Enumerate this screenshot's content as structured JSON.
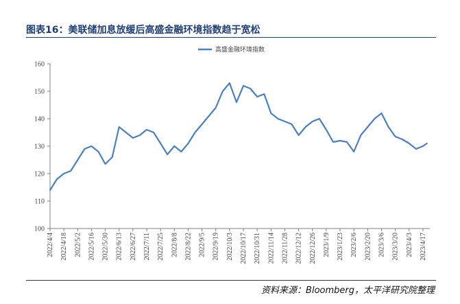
{
  "header": {
    "figure_title": "图表16：美联储加息放缓后高盛金融环境指数趋于宽松"
  },
  "footer": {
    "source": "资料来源：Bloomberg，太平洋研究院整理"
  },
  "colors": {
    "line": "#4a7fc1",
    "title": "#1f3f75"
  },
  "chart_data": {
    "type": "line",
    "title": "",
    "xlabel": "",
    "ylabel": "",
    "ylim": [
      100,
      160
    ],
    "yticks": [
      100,
      110,
      120,
      130,
      140,
      150,
      160
    ],
    "grid": false,
    "legend_position": "top-center",
    "x_tick_labels": [
      "2022/4/4",
      "2022/4/18",
      "2022/5/2",
      "2022/5/16",
      "2022/5/30",
      "2022/6/13",
      "2022/6/27",
      "2022/7/11",
      "2022/7/25",
      "2022/8/8",
      "2022/8/22",
      "2022/9/5",
      "2022/9/19",
      "2022/10/3",
      "2022/10/17",
      "2022/10/31",
      "2022/11/14",
      "2022/11/28",
      "2022/12/12",
      "2022/12/26",
      "2023/1/9",
      "2023/1/23",
      "2023/2/6",
      "2023/2/20",
      "2023/3/6",
      "2023/3/20",
      "2023/4/3",
      "2023/4/17"
    ],
    "series": [
      {
        "name": "高盛金融环境指数",
        "x": [
          "2022/4/4",
          "2022/4/11",
          "2022/4/18",
          "2022/4/25",
          "2022/5/2",
          "2022/5/9",
          "2022/5/16",
          "2022/5/23",
          "2022/5/30",
          "2022/6/6",
          "2022/6/13",
          "2022/6/20",
          "2022/6/27",
          "2022/7/4",
          "2022/7/11",
          "2022/7/18",
          "2022/7/25",
          "2022/8/1",
          "2022/8/8",
          "2022/8/15",
          "2022/8/22",
          "2022/8/29",
          "2022/9/5",
          "2022/9/12",
          "2022/9/19",
          "2022/9/26",
          "2022/10/3",
          "2022/10/10",
          "2022/10/17",
          "2022/10/24",
          "2022/10/31",
          "2022/11/7",
          "2022/11/14",
          "2022/11/21",
          "2022/11/28",
          "2022/12/5",
          "2022/12/12",
          "2022/12/19",
          "2022/12/26",
          "2023/1/2",
          "2023/1/9",
          "2023/1/16",
          "2023/1/23",
          "2023/1/30",
          "2023/2/6",
          "2023/2/13",
          "2023/2/20",
          "2023/2/27",
          "2023/3/6",
          "2023/3/13",
          "2023/3/20",
          "2023/3/27",
          "2023/4/3",
          "2023/4/10",
          "2023/4/17",
          "2023/4/21"
        ],
        "values": [
          114,
          118,
          120,
          121,
          125,
          129,
          130,
          128,
          123.5,
          126,
          137,
          135,
          133,
          134,
          136,
          135,
          131,
          127,
          130,
          128,
          131,
          135,
          138,
          141,
          144,
          150,
          153,
          146,
          152,
          151,
          148,
          149,
          142,
          140,
          139,
          138,
          134,
          137,
          139,
          140,
          136,
          131.5,
          132,
          131.5,
          128,
          134,
          137,
          140,
          142,
          137,
          133.5,
          132.5,
          131,
          129,
          130,
          131
        ]
      }
    ]
  }
}
